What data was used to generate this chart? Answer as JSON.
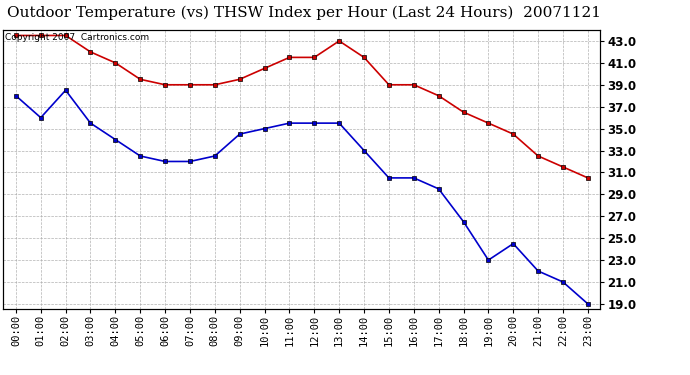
{
  "title": "Outdoor Temperature (vs) THSW Index per Hour (Last 24 Hours)  20071121",
  "copyright_text": "Copyright 2007  Cartronics.com",
  "hours": [
    "00:00",
    "01:00",
    "02:00",
    "03:00",
    "04:00",
    "05:00",
    "06:00",
    "07:00",
    "08:00",
    "09:00",
    "10:00",
    "11:00",
    "12:00",
    "13:00",
    "14:00",
    "15:00",
    "16:00",
    "17:00",
    "18:00",
    "19:00",
    "20:00",
    "21:00",
    "22:00",
    "23:00"
  ],
  "thsw": [
    43.5,
    43.5,
    43.5,
    42.0,
    41.0,
    39.5,
    39.0,
    39.0,
    39.0,
    39.5,
    40.5,
    41.5,
    41.5,
    43.0,
    41.5,
    39.0,
    39.0,
    38.0,
    36.5,
    35.5,
    34.5,
    32.5,
    31.5,
    30.5
  ],
  "outdoor_temp": [
    38.0,
    36.0,
    38.5,
    35.5,
    34.0,
    32.5,
    32.0,
    32.0,
    32.5,
    34.5,
    35.0,
    35.5,
    35.5,
    35.5,
    33.0,
    30.5,
    30.5,
    29.5,
    26.5,
    23.0,
    24.5,
    22.0,
    21.0,
    19.0
  ],
  "thsw_color": "#cc0000",
  "temp_color": "#0000cc",
  "marker": "s",
  "marker_size": 3.0,
  "linewidth": 1.2,
  "ylim_min": 18.5,
  "ylim_max": 44.0,
  "yticks": [
    19.0,
    21.0,
    23.0,
    25.0,
    27.0,
    29.0,
    31.0,
    33.0,
    35.0,
    37.0,
    39.0,
    41.0,
    43.0
  ],
  "bg_color": "#ffffff",
  "grid_color": "#aaaaaa",
  "title_fontsize": 11,
  "copyright_fontsize": 6.5,
  "tick_fontsize": 7.5,
  "ytick_fontsize": 8.5
}
